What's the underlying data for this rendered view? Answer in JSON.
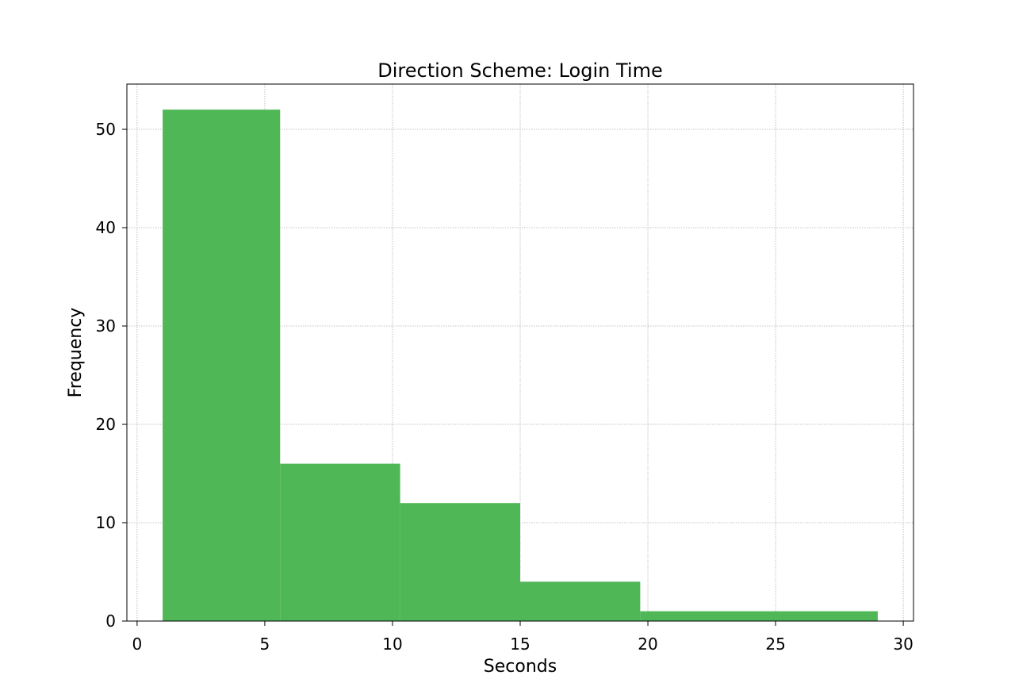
{
  "chart_data": {
    "type": "bar",
    "title": "Direction Scheme: Login Time",
    "xlabel": "Seconds",
    "ylabel": "Frequency",
    "xlim": [
      -0.4,
      30.4
    ],
    "ylim": [
      0,
      54.6
    ],
    "xticks": [
      0,
      5,
      10,
      15,
      20,
      25,
      30
    ],
    "yticks": [
      0,
      10,
      20,
      30,
      40,
      50
    ],
    "grid": true,
    "bar_color": "#4db653",
    "bins": [
      {
        "start": 1.0,
        "end": 5.6,
        "value": 52
      },
      {
        "start": 5.6,
        "end": 10.3,
        "value": 16
      },
      {
        "start": 10.3,
        "end": 15.0,
        "value": 12
      },
      {
        "start": 15.0,
        "end": 19.7,
        "value": 4
      },
      {
        "start": 19.7,
        "end": 29.0,
        "value": 1
      }
    ]
  }
}
